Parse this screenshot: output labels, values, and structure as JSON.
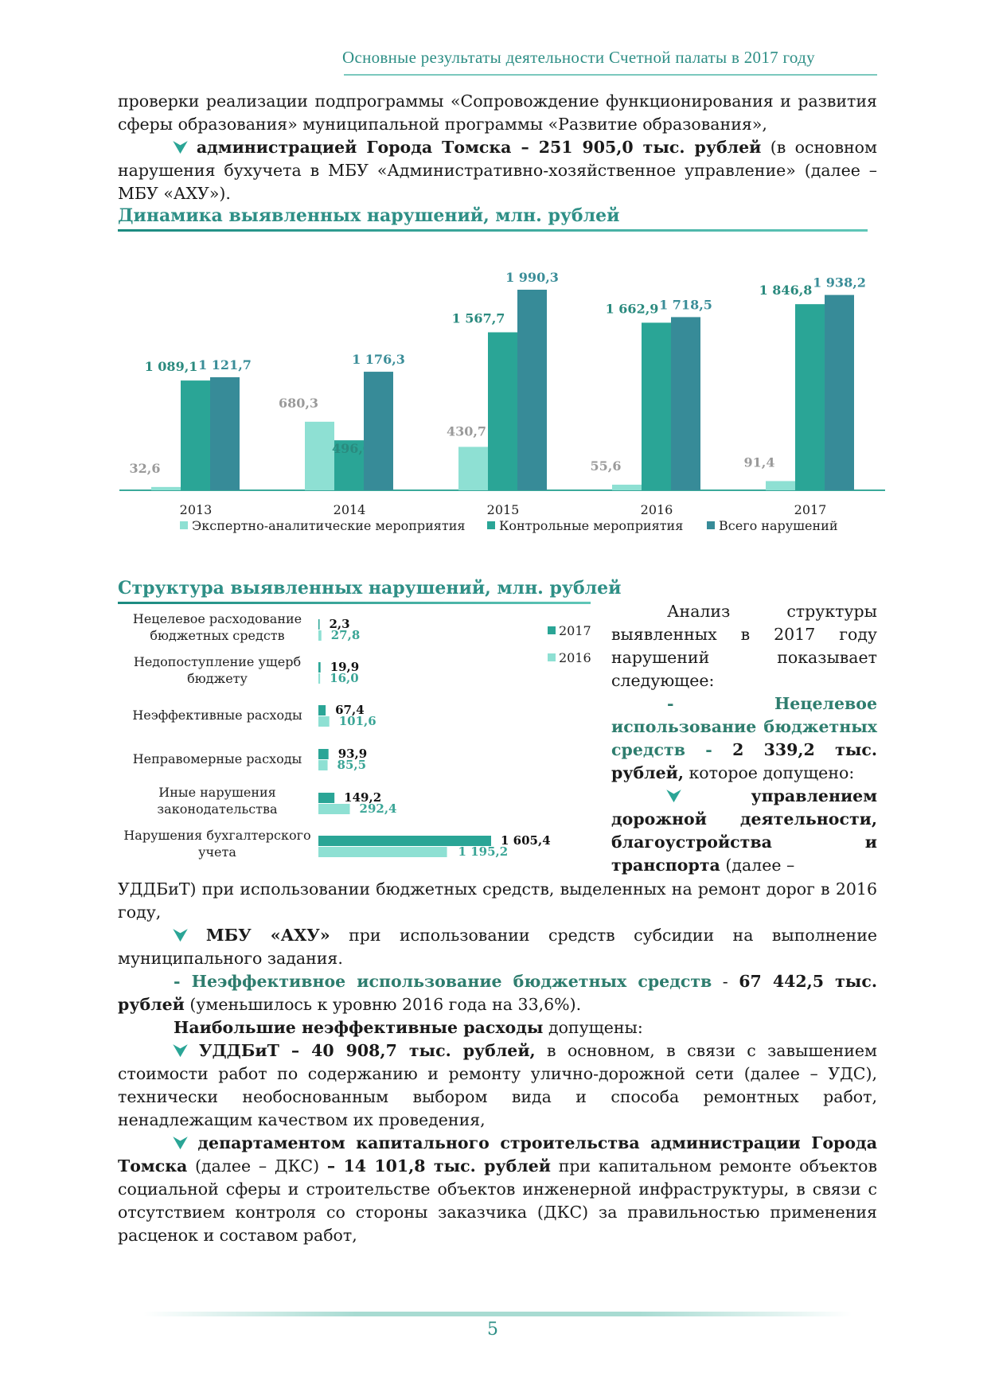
{
  "header": {
    "title": "Основные результаты деятельности Счетной палаты в 2017 году"
  },
  "intro": {
    "line1": "проверки реализации подпрограммы «Сопровождение функционирования и развития сферы образования» муниципальной программы «Развитие образования»,",
    "p2_bold": "администрацией Города Томска – 251 905,0 тыс. рублей",
    "p2_rest": " (в основном нарушения бухучета в МБУ «Административно-хозяйственное управление» (далее – МБУ «АХУ»)."
  },
  "chart1_title": "Динамика выявленных нарушений, млн. рублей",
  "chart2_title": "Структура выявленных нарушений, млн. рублей",
  "colors": {
    "expert": "#8ee0d3",
    "control": "#2aa596",
    "total": "#378b98",
    "light": "#8ee0d3"
  },
  "chart_data": [
    {
      "type": "bar",
      "title": "Динамика выявленных нарушений, млн. рублей",
      "categories": [
        "2013",
        "2014",
        "2015",
        "2016",
        "2017"
      ],
      "series": [
        {
          "name": "Экспертно-аналитические мероприятия",
          "values": [
            32.6,
            680.3,
            430.7,
            55.6,
            91.4
          ],
          "labels": [
            "32,6",
            "680,3",
            "430,7",
            "55,6",
            "91,4"
          ]
        },
        {
          "name": "Контрольные мероприятия",
          "values": [
            1089.1,
            496.0,
            1567.7,
            1662.9,
            1846.8
          ],
          "labels": [
            "1 089,1",
            "496,0",
            "1 567,7",
            "1 662,9",
            "1 846,8"
          ]
        },
        {
          "name": "Всего нарушений",
          "values": [
            1121.7,
            1176.3,
            1990.3,
            1718.5,
            1938.2
          ],
          "labels": [
            "1 121,7",
            "1 176,3",
            "1 990,3",
            "1 718,5",
            "1 938,2"
          ]
        }
      ],
      "ylim": [
        0,
        2100
      ],
      "legend": "bottom"
    },
    {
      "type": "bar",
      "title": "Структура выявленных нарушений, млн. рублей",
      "orientation": "horizontal",
      "categories": [
        [
          "Нецелевое расходование",
          "бюджетных средств"
        ],
        [
          "Недопоступление ущерб",
          "бюджету"
        ],
        [
          "Неэффективные расходы"
        ],
        [
          "Неправомерные расходы"
        ],
        [
          "Иные нарушения",
          "законодательства"
        ],
        [
          "Нарушения бухгалтерского",
          "учета"
        ]
      ],
      "series": [
        {
          "name": "2017",
          "values": [
            2.3,
            19.9,
            67.4,
            93.9,
            149.2,
            1605.4
          ],
          "labels": [
            "2,3",
            "19,9",
            "67,4",
            "93,9",
            "149,2",
            "1 605,4"
          ]
        },
        {
          "name": "2016",
          "values": [
            27.8,
            16.0,
            101.6,
            85.5,
            292.4,
            1195.2
          ],
          "labels": [
            "27,8",
            "16,0",
            "101,6",
            "85,5",
            "292,4",
            "1 195,2"
          ]
        }
      ],
      "legend": "top-right"
    }
  ],
  "side": {
    "p1": "Анализ структуры выявленных в 2017 году нарушений показывает следующее:",
    "p2_dash": "- ",
    "p2_green": "Нецелевое использование бюджетных средств",
    "p2_sep": " - ",
    "p2_bold": "2 339,2 тыс. рублей,",
    "p2_rest": " которое допущено:",
    "p3_bold": "управлением дорожной деятельности, благоустройства и транспорта",
    "p3_rest": " (далее –"
  },
  "body": {
    "l1": "УДДБиТ) при использовании бюджетных средств, выделенных на ремонт дорог в 2016 году,",
    "l2_bold": "МБУ «АХУ»",
    "l2_rest": " при использовании средств субсидии на выполнение муниципального задания.",
    "l3_green": "- Неэффективное использование бюджетных средств",
    "l3_sep": " - ",
    "l3_bold": "67 442,5 тыс. рублей",
    "l3_rest": " (уменьшилось к уровню 2016 года на 33,6%).",
    "l4_bold": "Наибольшие неэффективные расходы",
    "l4_rest": " допущены:",
    "l5_bold": "УДДБиТ – 40 908,7 тыс. рублей,",
    "l5_rest": " в основном, в связи с завышением стоимости работ по содержанию и ремонту улично-дорожной сети (далее – УДС), технически необоснованным выбором вида и способа ремонтных работ, ненадлежащим качеством их проведения,",
    "l6_bold": "департаментом капитального строительства администрации Города Томска",
    "l6_mid": " (далее – ДКС) ",
    "l6_bold2": "– 14 101,8 тыс. рублей",
    "l6_rest": " при капитальном ремонте объектов социальной сферы и строительстве объектов инженерной инфраструктуры, в связи с отсутствием контроля со стороны заказчика (ДКС) за правильностью применения расценок и составом работ,"
  },
  "bullet_icon": "checkmark-arrow-icon",
  "bullet_char": "⮟",
  "page_number": "5"
}
